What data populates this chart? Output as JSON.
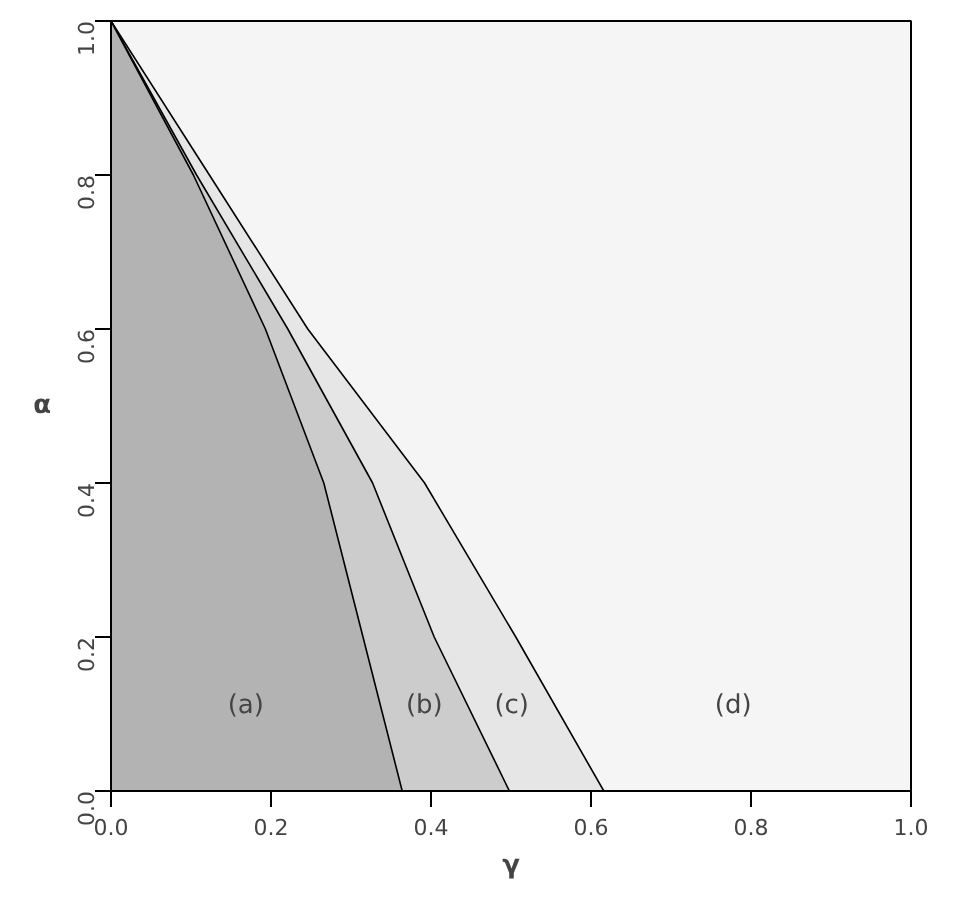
{
  "chart_data": {
    "type": "area",
    "xlabel": "γ",
    "ylabel": "α",
    "series": [
      {
        "color": "#e6e6e6",
        "x": [
          0,
          0.123,
          0.246,
          0.392,
          0.506,
          0.616
        ],
        "values": [
          1,
          0.8,
          0.6,
          0.4,
          0.2,
          0
        ]
      },
      {
        "color": "#cccccc",
        "x": [
          0,
          0.107,
          0.221,
          0.327,
          0.404,
          0.498
        ],
        "values": [
          1,
          0.8,
          0.6,
          0.4,
          0.2,
          0
        ]
      },
      {
        "color": "#b3b3b3",
        "x": [
          0,
          0.103,
          0.193,
          0.266,
          0.315,
          0.364
        ],
        "values": [
          1,
          0.8,
          0.6,
          0.4,
          0.2,
          0
        ]
      }
    ],
    "annotations": [
      "(a)",
      "(b)",
      "(c)",
      "(d)"
    ],
    "xlim": [
      0,
      1
    ],
    "ylim": [
      0,
      1
    ],
    "xticks": [
      {
        "value": 0,
        "label": "0.0"
      },
      0.2,
      0.4,
      0.6,
      0.8,
      {
        "value": 1,
        "label": "1.0"
      }
    ],
    "yticks": [
      {
        "value": 0,
        "label": "0.0"
      },
      0.2,
      0.4,
      0.6,
      0.8,
      {
        "value": 1,
        "label": "1.0"
      }
    ],
    "tick_labels": "xy"
  }
}
